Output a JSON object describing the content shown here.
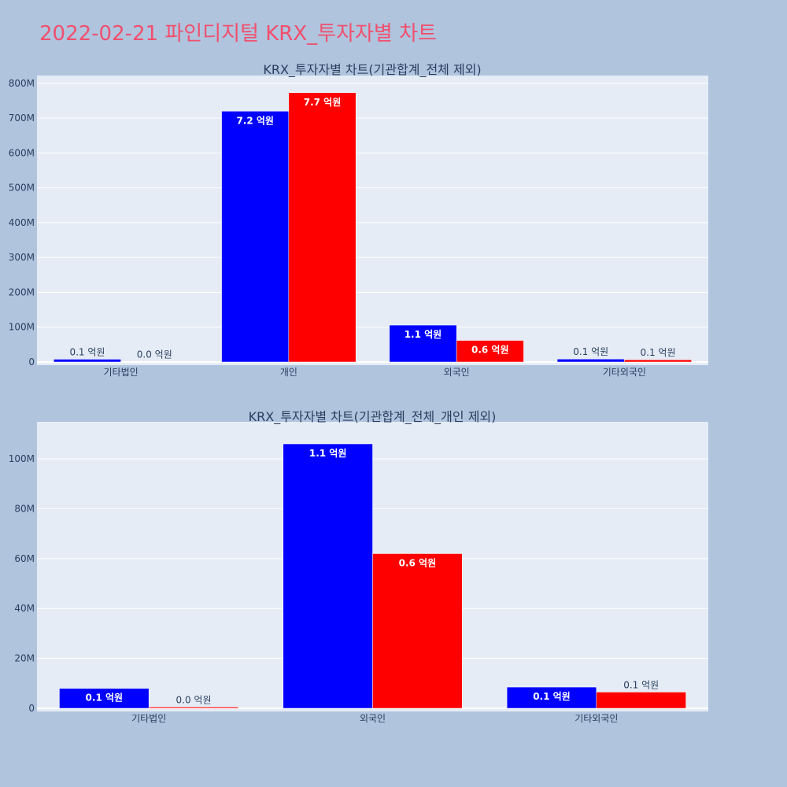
{
  "page_title": "2022-02-21 파인디지털 KRX_투자자별 차트",
  "colors": {
    "buy": "#0000ff",
    "sell": "#ff0000",
    "plot_bg": "#e5ecf6",
    "page_bg": "#b0c4de",
    "title": "#f0506e"
  },
  "chart_data": [
    {
      "type": "bar",
      "title": "KRX_투자자별 차트(기관합계_전체 제외)",
      "categories": [
        "기타법인",
        "개인",
        "외국인",
        "기타외국인"
      ],
      "series": [
        {
          "values": [
            8000000,
            720000000,
            106000000,
            8500000
          ],
          "labels": [
            "0.1 억원",
            "7.2 억원",
            "1.1 억원",
            "0.1 억원"
          ]
        },
        {
          "values": [
            500000,
            773000000,
            62000000,
            6500000
          ],
          "labels": [
            "0.0 억원",
            "7.7 억원",
            "0.6 억원",
            "0.1 억원"
          ]
        }
      ],
      "ylim": [
        0,
        820000000
      ],
      "yticks": [
        0,
        100000000,
        200000000,
        300000000,
        400000000,
        500000000,
        600000000,
        700000000,
        800000000
      ],
      "ytick_labels": [
        "0",
        "100M",
        "200M",
        "300M",
        "400M",
        "500M",
        "600M",
        "700M",
        "800M"
      ],
      "grid": true,
      "legend": false
    },
    {
      "type": "bar",
      "title": "KRX_투자자별 차트(기관합계_전체_개인 제외)",
      "categories": [
        "기타법인",
        "외국인",
        "기타외국인"
      ],
      "series": [
        {
          "values": [
            8000000,
            106000000,
            8500000
          ],
          "labels": [
            "0.1 억원",
            "1.1 억원",
            "0.1 억원"
          ]
        },
        {
          "values": [
            500000,
            62000000,
            6500000
          ],
          "labels": [
            "0.0 억원",
            "0.6 억원",
            "0.1 억원"
          ]
        }
      ],
      "ylim": [
        0,
        112000000
      ],
      "yticks": [
        0,
        20000000,
        40000000,
        60000000,
        80000000,
        100000000
      ],
      "ytick_labels": [
        "0",
        "20M",
        "40M",
        "60M",
        "80M",
        "100M"
      ],
      "grid": true,
      "legend": false
    }
  ]
}
